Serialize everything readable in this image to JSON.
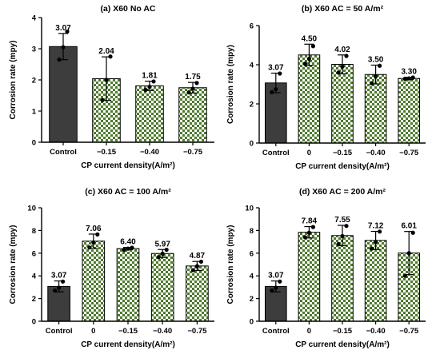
{
  "colors": {
    "control_fill": "#3d3d3d",
    "checker_green": "#4e7a2e",
    "checker_light": "#ffffff",
    "axis": "#000000",
    "points": "#000000"
  },
  "chart_data": [
    {
      "type": "bar",
      "title": "(a) X60 No AC",
      "xlabel": "CP current density(A/m²)",
      "ylabel": "Corrosion rate (mpy)",
      "ylim": [
        0,
        4
      ],
      "yticks": [
        0,
        1,
        2,
        3,
        4
      ],
      "categories": [
        "Control",
        "−0.15",
        "−0.40",
        "−0.75"
      ],
      "values": [
        3.07,
        2.04,
        1.81,
        1.75
      ],
      "value_labels": [
        "3.07",
        "2.04",
        "1.81",
        "1.75"
      ],
      "error": [
        0.42,
        0.7,
        0.15,
        0.17
      ],
      "points": [
        [
          2.65,
          3.05,
          3.55
        ],
        [
          1.35,
          2.0,
          2.75
        ],
        [
          1.68,
          1.78,
          1.95
        ],
        [
          1.6,
          1.72,
          1.9
        ]
      ],
      "grid": false,
      "legend": "none"
    },
    {
      "type": "bar",
      "title": "(b) X60  AC = 50 A/m²",
      "xlabel": "CP current density(A/m²)",
      "ylabel": "Corrosion rate (mpy)",
      "ylim": [
        0,
        6
      ],
      "yticks": [
        0,
        2,
        4,
        6
      ],
      "categories": [
        "Control",
        "0",
        "−0.15",
        "−0.40",
        "−0.75"
      ],
      "values": [
        3.07,
        4.5,
        4.02,
        3.5,
        3.3
      ],
      "value_labels": [
        "3.07",
        "4.50",
        "4.02",
        "3.50",
        "3.30"
      ],
      "error": [
        0.5,
        0.55,
        0.48,
        0.48,
        0.06
      ],
      "points": [
        [
          2.6,
          2.75,
          3.55
        ],
        [
          4.05,
          4.3,
          4.95
        ],
        [
          3.6,
          3.9,
          4.45
        ],
        [
          3.05,
          3.4,
          3.95
        ],
        [
          3.28,
          3.3,
          3.35
        ]
      ],
      "grid": false,
      "legend": "none"
    },
    {
      "type": "bar",
      "title": "(c) X60  AC = 100 A/m²",
      "xlabel": "CP current density(A/m²)",
      "ylabel": "Corrosion rate (mpy)",
      "ylim": [
        0,
        10
      ],
      "yticks": [
        0,
        2,
        4,
        6,
        8,
        10
      ],
      "categories": [
        "Control",
        "0",
        "−0.15",
        "−0.40",
        "−0.75"
      ],
      "values": [
        3.07,
        7.06,
        6.4,
        5.97,
        4.87
      ],
      "value_labels": [
        "3.07",
        "7.06",
        "6.40",
        "5.97",
        "4.87"
      ],
      "error": [
        0.48,
        0.62,
        0.1,
        0.35,
        0.4
      ],
      "points": [
        [
          2.7,
          2.95,
          3.5
        ],
        [
          6.5,
          6.95,
          7.65
        ],
        [
          6.3,
          6.4,
          6.48
        ],
        [
          5.65,
          5.95,
          6.3
        ],
        [
          4.5,
          4.85,
          5.25
        ]
      ],
      "grid": false,
      "legend": "none"
    },
    {
      "type": "bar",
      "title": "(d) X60  AC = 200 A/m²",
      "xlabel": "CP current density(A/m²)",
      "ylabel": "Corrosion rate (mpy)",
      "ylim": [
        0,
        10
      ],
      "yticks": [
        0,
        2,
        4,
        6,
        8,
        10
      ],
      "categories": [
        "Control",
        "0",
        "−0.15",
        "−0.40",
        "−0.75"
      ],
      "values": [
        3.07,
        7.84,
        7.55,
        7.12,
        6.01
      ],
      "value_labels": [
        "3.07",
        "7.84",
        "7.55",
        "7.12",
        "6.01"
      ],
      "error": [
        0.48,
        0.5,
        0.9,
        0.8,
        1.9
      ],
      "points": [
        [
          2.7,
          2.95,
          3.5
        ],
        [
          7.4,
          7.8,
          8.3
        ],
        [
          6.8,
          7.5,
          8.4
        ],
        [
          6.4,
          7.0,
          7.9
        ],
        [
          4.0,
          6.0,
          7.8
        ]
      ],
      "grid": false,
      "legend": "none"
    }
  ]
}
